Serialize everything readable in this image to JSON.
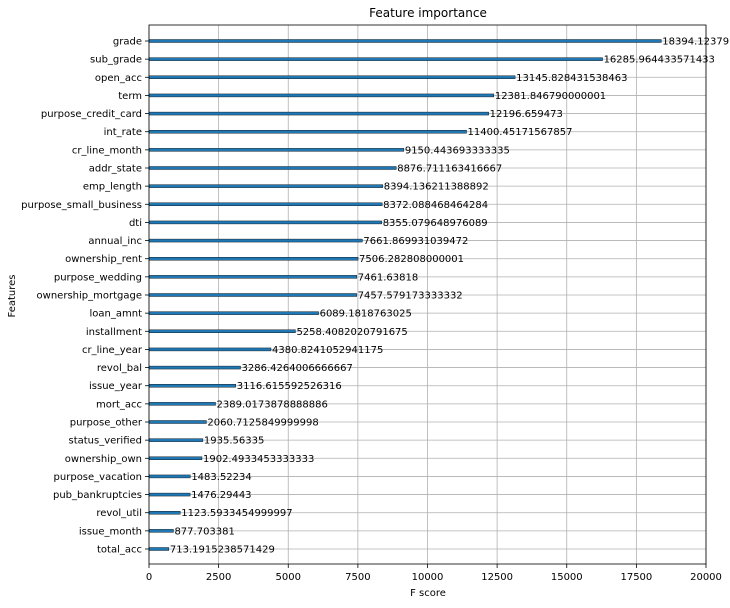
{
  "chart_data": {
    "type": "bar",
    "orientation": "horizontal",
    "title": "Feature importance",
    "xlabel": "F score",
    "ylabel": "Features",
    "xlim": [
      0,
      20000
    ],
    "xticks": [
      "0",
      "2500",
      "5000",
      "7500",
      "10000",
      "12500",
      "15000",
      "17500",
      "20000"
    ],
    "grid": true,
    "bar_color": "#1f77b4",
    "categories": [
      "grade",
      "sub_grade",
      "open_acc",
      "term",
      "purpose_credit_card",
      "int_rate",
      "cr_line_month",
      "addr_state",
      "emp_length",
      "purpose_small_business",
      "dti",
      "annual_inc",
      "ownership_rent",
      "purpose_wedding",
      "ownership_mortgage",
      "loan_amnt",
      "installment",
      "cr_line_year",
      "revol_bal",
      "issue_year",
      "mort_acc",
      "purpose_other",
      "status_verified",
      "ownership_own",
      "purpose_vacation",
      "pub_bankruptcies",
      "revol_util",
      "issue_month",
      "total_acc"
    ],
    "values": [
      18394.12379,
      16285.964433571433,
      13145.828431538463,
      12381.846790000001,
      12196.659473,
      11400.45171567857,
      9150.443693333335,
      8876.711163416667,
      8394.136211388892,
      8372.088468464284,
      8355.079648976089,
      7661.869931039472,
      7506.282808000001,
      7461.63818,
      7457.579173333332,
      6089.1818763025,
      5258.4082020791675,
      4380.8241052941175,
      3286.4264006666667,
      3116.615592526316,
      2389.0173878888886,
      2060.7125849999998,
      1935.56335,
      1902.4933453333333,
      1483.52234,
      1476.29443,
      1123.5933454999997,
      877.703381,
      713.1915238571429
    ],
    "data_labels": [
      "18394.12379",
      "16285.964433571433",
      "13145.828431538463",
      "12381.846790000001",
      "12196.659473",
      "11400.45171567857",
      "9150.443693333335",
      "8876.711163416667",
      "8394.136211388892",
      "8372.088468464284",
      "8355.079648976089",
      "7661.869931039472",
      "7506.282808000001",
      "7461.63818",
      "7457.579173333332",
      "6089.1818763025",
      "5258.4082020791675",
      "4380.8241052941175",
      "3286.4264006666667",
      "3116.615592526316",
      "2389.0173878888886",
      "2060.7125849999998",
      "1935.56335",
      "1902.4933453333333",
      "1483.52234",
      "1476.29443",
      "1123.5933454999997",
      "877.703381",
      "713.1915238571429"
    ]
  }
}
